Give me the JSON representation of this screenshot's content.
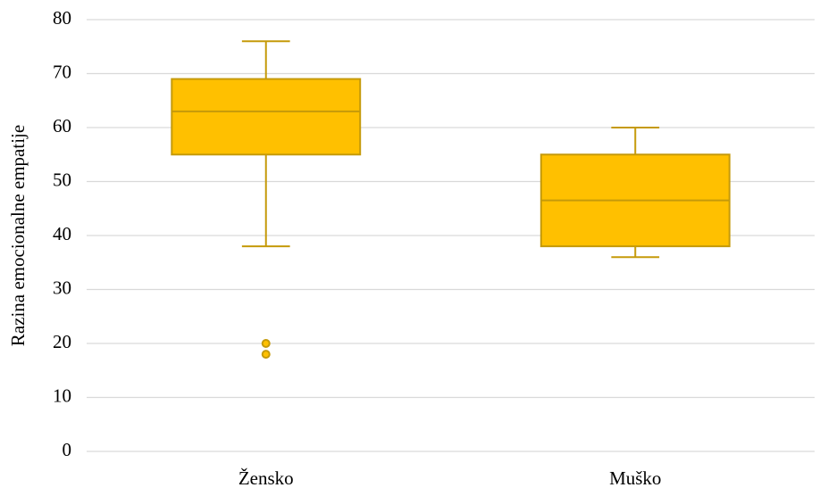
{
  "chart_data": {
    "type": "box",
    "y_label": "Razina emocionalne empatije",
    "categories": [
      "Žensko",
      "Muško"
    ],
    "boxes": [
      {
        "whisker_low": 38,
        "q1": 55,
        "median": 63,
        "q3": 69,
        "whisker_high": 76,
        "outliers": [
          20,
          18
        ]
      },
      {
        "whisker_low": 36,
        "q1": 38,
        "median": 46.5,
        "q3": 55,
        "whisker_high": 60,
        "outliers": []
      }
    ],
    "color": "#ffc000",
    "edge_color": "#c59a0a",
    "ylim": [
      0,
      80
    ],
    "yticks": [
      0,
      10,
      20,
      30,
      40,
      50,
      60,
      70,
      80
    ],
    "grid": true
  }
}
